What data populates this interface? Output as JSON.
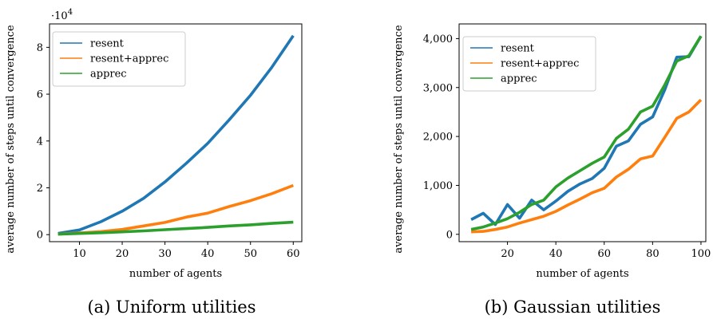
{
  "colors": {
    "resent": "#1f77b4",
    "resent_apprec": "#ff7f0e",
    "apprec": "#2ca02c"
  },
  "chart_data": [
    {
      "type": "line",
      "caption": "(a) Uniform utilities",
      "xlabel": "number of agents",
      "ylabel": "average number of steps until convergence",
      "offset_text": "·10",
      "offset_exp": "4",
      "xlim": [
        3,
        62
      ],
      "ylim": [
        -0.3,
        9
      ],
      "xticks": [
        10,
        20,
        30,
        40,
        50,
        60
      ],
      "xtick_labels": [
        "10",
        "20",
        "30",
        "40",
        "50",
        "60"
      ],
      "yticks": [
        0,
        2,
        4,
        6,
        8
      ],
      "ytick_labels": [
        "0",
        "2",
        "4",
        "6",
        "8"
      ],
      "legend_placement": "top-left",
      "grid": false,
      "series": [
        {
          "name": "resent",
          "color": "#1f77b4",
          "x": [
            5,
            10,
            15,
            20,
            25,
            30,
            35,
            40,
            45,
            50,
            55,
            60
          ],
          "y": [
            0.05,
            0.2,
            0.55,
            1.0,
            1.55,
            2.25,
            3.05,
            3.9,
            4.9,
            5.95,
            7.15,
            8.5
          ]
        },
        {
          "name": "resent+apprec",
          "color": "#ff7f0e",
          "x": [
            5,
            10,
            15,
            20,
            25,
            30,
            35,
            40,
            45,
            50,
            55,
            60
          ],
          "y": [
            0.02,
            0.07,
            0.13,
            0.22,
            0.37,
            0.52,
            0.75,
            0.92,
            1.2,
            1.45,
            1.75,
            2.1
          ]
        },
        {
          "name": "apprec",
          "color": "#2ca02c",
          "x": [
            5,
            10,
            15,
            20,
            25,
            30,
            35,
            40,
            45,
            50,
            55,
            60
          ],
          "y": [
            0.02,
            0.05,
            0.08,
            0.12,
            0.16,
            0.21,
            0.26,
            0.31,
            0.37,
            0.42,
            0.48,
            0.53
          ]
        }
      ]
    },
    {
      "type": "line",
      "caption": "(b) Gaussian utilities",
      "xlabel": "number of agents",
      "ylabel": "average number of steps until convergence",
      "xlim": [
        0,
        102
      ],
      "ylim": [
        -150,
        4300
      ],
      "xticks": [
        20,
        40,
        60,
        80,
        100
      ],
      "xtick_labels": [
        "20",
        "40",
        "60",
        "80",
        "100"
      ],
      "yticks": [
        0,
        1000,
        2000,
        3000,
        4000
      ],
      "ytick_labels": [
        "0",
        "1,000",
        "2,000",
        "3,000",
        "4,000"
      ],
      "legend_placement": "top-left",
      "grid": false,
      "series": [
        {
          "name": "resent",
          "color": "#1f77b4",
          "x": [
            5,
            10,
            15,
            20,
            25,
            30,
            35,
            40,
            45,
            50,
            55,
            60,
            65,
            70,
            75,
            80,
            85,
            90,
            95,
            100
          ],
          "y": [
            300,
            430,
            200,
            610,
            330,
            700,
            500,
            680,
            880,
            1030,
            1140,
            1350,
            1800,
            1910,
            2250,
            2400,
            2950,
            3620,
            3630,
            4050
          ]
        },
        {
          "name": "resent+apprec",
          "color": "#ff7f0e",
          "x": [
            5,
            10,
            15,
            20,
            25,
            30,
            35,
            40,
            45,
            50,
            55,
            60,
            65,
            70,
            75,
            80,
            85,
            90,
            95,
            100
          ],
          "y": [
            50,
            60,
            100,
            150,
            230,
            300,
            370,
            470,
            600,
            720,
            850,
            940,
            1170,
            1330,
            1540,
            1600,
            1980,
            2370,
            2500,
            2750
          ]
        },
        {
          "name": "apprec",
          "color": "#2ca02c",
          "x": [
            5,
            10,
            15,
            20,
            25,
            30,
            35,
            40,
            45,
            50,
            55,
            60,
            65,
            70,
            75,
            80,
            85,
            90,
            95,
            100
          ],
          "y": [
            100,
            150,
            230,
            320,
            450,
            610,
            700,
            970,
            1150,
            1300,
            1450,
            1580,
            1960,
            2150,
            2500,
            2620,
            3050,
            3540,
            3650,
            4050
          ]
        }
      ]
    }
  ]
}
